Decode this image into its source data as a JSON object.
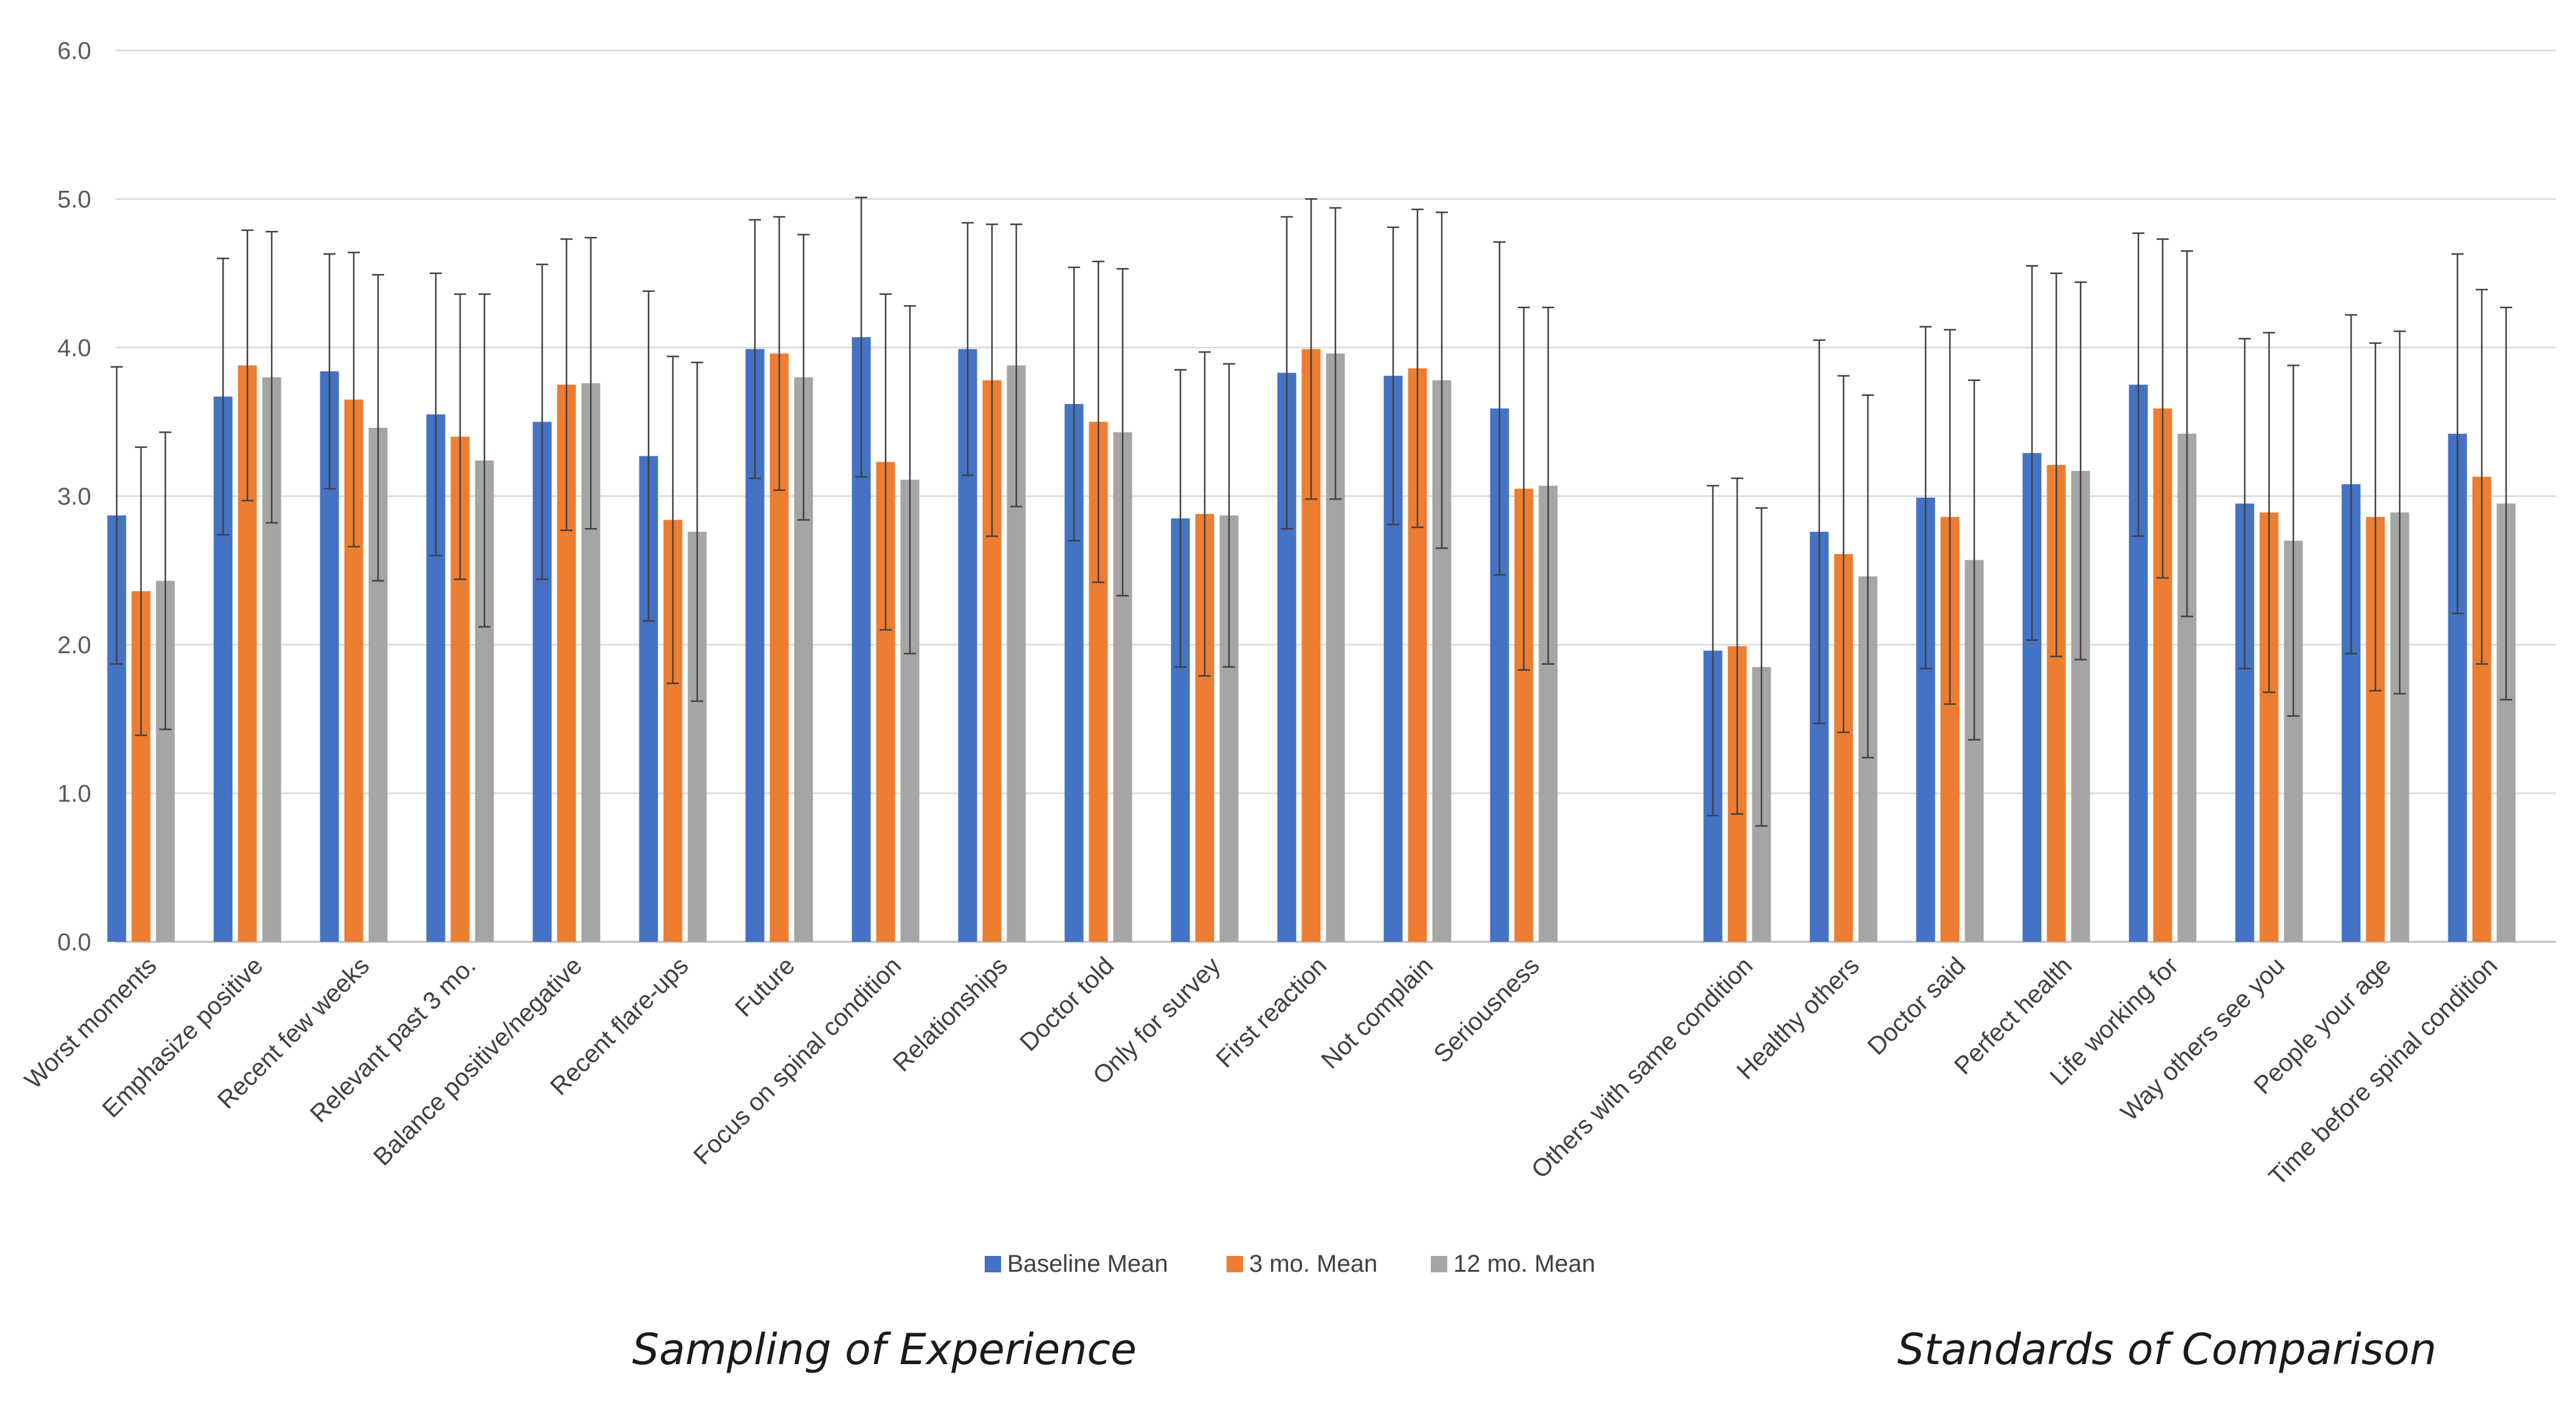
{
  "chart_data": {
    "type": "bar",
    "title": "",
    "xlabel": "",
    "ylabel": "",
    "ylim": [
      0,
      6
    ],
    "yticks": [
      "0.0",
      "1.0",
      "2.0",
      "3.0",
      "4.0",
      "5.0",
      "6.0"
    ],
    "grid": true,
    "error_bars": true,
    "legend_position": "bottom-center",
    "categories": [
      "Worst moments",
      "Emphasize positive",
      "Recent few weeks",
      "Relevant past 3 mo.",
      "Balance positive/negative",
      "Recent flare-ups",
      "Future",
      "Focus on spinal condition",
      "Relationships",
      "Doctor told",
      "Only for survey",
      "First reaction",
      "Not complain",
      "Seriousness",
      "Others with same condition",
      "Healthy others",
      "Doctor said",
      "Perfect health",
      "Life working for",
      "Way others see you",
      "People your age",
      "Time before spinal condition"
    ],
    "groups": [
      {
        "label": "Sampling of Experience",
        "start": 0,
        "end": 13
      },
      {
        "label": "Standards of Comparison",
        "start": 14,
        "end": 21
      }
    ],
    "series": [
      {
        "name": "Baseline Mean",
        "color": "#4472C4",
        "values": [
          2.87,
          3.67,
          3.84,
          3.55,
          3.5,
          3.27,
          3.99,
          4.07,
          3.99,
          3.62,
          2.85,
          3.83,
          3.81,
          3.59,
          1.96,
          2.76,
          2.99,
          3.29,
          3.75,
          2.95,
          3.08,
          3.42
        ],
        "errors": [
          1.0,
          0.93,
          0.79,
          0.95,
          1.06,
          1.11,
          0.87,
          0.94,
          0.85,
          0.92,
          1.0,
          1.05,
          1.0,
          1.12,
          1.11,
          1.29,
          1.15,
          1.26,
          1.02,
          1.11,
          1.14,
          1.21
        ]
      },
      {
        "name": "3 mo. Mean",
        "color": "#ED7D31",
        "values": [
          2.36,
          3.88,
          3.65,
          3.4,
          3.75,
          2.84,
          3.96,
          3.23,
          3.78,
          3.5,
          2.88,
          3.99,
          3.86,
          3.05,
          1.99,
          2.61,
          2.86,
          3.21,
          3.59,
          2.89,
          2.86,
          3.13
        ],
        "errors": [
          0.97,
          0.91,
          0.99,
          0.96,
          0.98,
          1.1,
          0.92,
          1.13,
          1.05,
          1.08,
          1.09,
          1.01,
          1.07,
          1.22,
          1.13,
          1.2,
          1.26,
          1.29,
          1.14,
          1.21,
          1.17,
          1.26
        ]
      },
      {
        "name": "12 mo. Mean",
        "color": "#A5A5A5",
        "values": [
          2.43,
          3.8,
          3.46,
          3.24,
          3.76,
          2.76,
          3.8,
          3.11,
          3.88,
          3.43,
          2.87,
          3.96,
          3.78,
          3.07,
          1.85,
          2.46,
          2.57,
          3.17,
          3.42,
          2.7,
          2.89,
          2.95
        ],
        "errors": [
          1.0,
          0.98,
          1.03,
          1.12,
          0.98,
          1.14,
          0.96,
          1.17,
          0.95,
          1.1,
          1.02,
          0.98,
          1.13,
          1.2,
          1.07,
          1.22,
          1.21,
          1.27,
          1.23,
          1.18,
          1.22,
          1.32
        ]
      }
    ]
  }
}
